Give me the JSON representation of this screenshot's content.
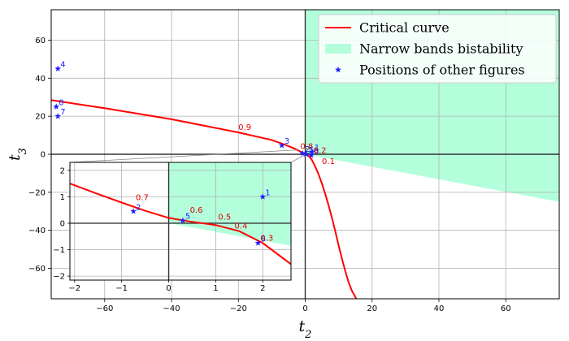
{
  "chart_data": {
    "type": "line",
    "xlabel": "t",
    "xlabel_sub": "2",
    "ylabel": "t",
    "ylabel_sub": "3",
    "xlim": [
      -76,
      76
    ],
    "ylim": [
      -76,
      76
    ],
    "xticks": [
      -60,
      -40,
      -20,
      0,
      20,
      40,
      60
    ],
    "yticks": [
      -60,
      -40,
      -20,
      0,
      20,
      40,
      60
    ],
    "grid": true,
    "legend": {
      "placement": "top-right",
      "entries": [
        {
          "label": "Critical curve",
          "kind": "line",
          "color": "#ff0000"
        },
        {
          "label": "Narrow bands bistability",
          "kind": "patch",
          "color": "#b3ffdc"
        },
        {
          "label": "Positions of other figures",
          "kind": "marker",
          "color": "#1f1fff"
        }
      ]
    },
    "critical_curve": {
      "name": "Critical curve",
      "color": "#ff0000",
      "x": [
        -76,
        -60,
        -40,
        -20,
        -10,
        -5,
        -3,
        -1.5,
        -0.5,
        0,
        0.5,
        1,
        1.5,
        2,
        3,
        4,
        5,
        6,
        7,
        8,
        9,
        10,
        11,
        12,
        13,
        14,
        15,
        15.5
      ],
      "y": [
        28.5,
        24.2,
        18.4,
        11.5,
        7.5,
        4.3,
        2.8,
        1.5,
        0.6,
        0.1,
        -0.4,
        -1.0,
        -1.8,
        -3.0,
        -6.5,
        -10.5,
        -15.5,
        -21,
        -27,
        -33.5,
        -40.5,
        -48,
        -55,
        -61.5,
        -67.5,
        -72,
        -75,
        -77
      ]
    },
    "region": {
      "name": "Narrow bands bistability",
      "color": "#b3ffdc",
      "polygon": [
        [
          0,
          76
        ],
        [
          76,
          76
        ],
        [
          76,
          -25
        ],
        [
          0,
          0
        ]
      ]
    },
    "curve_labels": [
      {
        "text": "0.9",
        "x": -20,
        "y": 11.5
      },
      {
        "text": "0.8",
        "x": -1.5,
        "y": 1.5
      },
      {
        "text": "0.2",
        "x": 2.5,
        "y": -0.6
      },
      {
        "text": "0.1",
        "x": 5,
        "y": -6.5
      }
    ],
    "points": {
      "name": "Positions of other figures",
      "color": "#1f1fff",
      "items": [
        {
          "label": "4",
          "x": -74,
          "y": 45
        },
        {
          "label": "8",
          "x": -74.5,
          "y": 25
        },
        {
          "label": "7",
          "x": -74,
          "y": 20
        },
        {
          "label": "3",
          "x": -7,
          "y": 4.6
        },
        {
          "label": "1",
          "x": 2,
          "y": 1.2
        },
        {
          "label": "2",
          "x": -0.8,
          "y": 0.5
        },
        {
          "label": "5",
          "x": 0.3,
          "y": 0.1
        },
        {
          "label": "6",
          "x": 1.8,
          "y": -0.6
        }
      ]
    },
    "inset": {
      "xlim": [
        -2.1,
        2.6
      ],
      "ylim": [
        -2.15,
        2.3
      ],
      "xticks": [
        -2,
        -1,
        0,
        1,
        2
      ],
      "yticks": [
        -2,
        -1,
        0,
        1,
        2
      ],
      "grid": true,
      "critical_curve_x": [
        -2.1,
        -1.5,
        -1.0,
        -0.5,
        0.0,
        0.5,
        1.0,
        1.5,
        2.0,
        2.6
      ],
      "critical_curve_y": [
        1.5,
        1.1,
        0.78,
        0.47,
        0.2,
        0.05,
        -0.07,
        -0.3,
        -0.75,
        -1.55
      ],
      "region_polygon": [
        [
          0,
          2.3
        ],
        [
          2.6,
          2.3
        ],
        [
          2.6,
          -0.85
        ],
        [
          0,
          0
        ]
      ],
      "curve_labels": [
        {
          "text": "0.7",
          "x": -0.7,
          "y": 0.78
        },
        {
          "text": "0.6",
          "x": 0.45,
          "y": 0.3
        },
        {
          "text": "0.5",
          "x": 1.05,
          "y": 0.05
        },
        {
          "text": "0.4",
          "x": 1.4,
          "y": -0.3
        },
        {
          "text": "0.3",
          "x": 1.95,
          "y": -0.75
        }
      ],
      "points": [
        {
          "label": "1",
          "x": 2.0,
          "y": 1.0
        },
        {
          "label": "2",
          "x": -0.75,
          "y": 0.45
        },
        {
          "label": "5",
          "x": 0.3,
          "y": 0.1
        },
        {
          "label": "6",
          "x": 1.9,
          "y": -0.75
        }
      ]
    }
  }
}
